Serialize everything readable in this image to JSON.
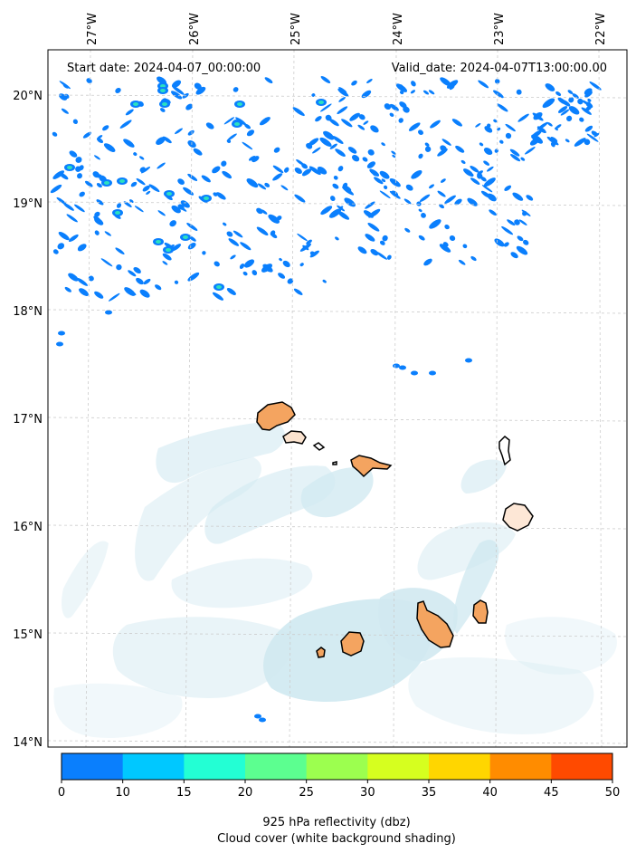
{
  "header": {
    "start_date": "Start date: 2024-04-07_00:00:00",
    "valid_date": "Valid_date: 2024-04-07T13:00:00.00"
  },
  "lon_labels": [
    "27°W",
    "26°W",
    "25°W",
    "24°W",
    "23°W",
    "22°W"
  ],
  "lat_labels": [
    "20°N",
    "19°N",
    "18°N",
    "17°N",
    "16°N",
    "15°N",
    "14°N"
  ],
  "colorbar": {
    "ticks": [
      "0",
      "10",
      "15",
      "20",
      "25",
      "30",
      "35",
      "40",
      "45",
      "50"
    ],
    "colors": [
      "#0a7ffd",
      "#00c8ff",
      "#23ffd4",
      "#5cff90",
      "#9cff4f",
      "#d6ff1f",
      "#ffd600",
      "#ff8c00",
      "#ff4a00"
    ],
    "label_line1": "925 hPa reflectivity (dbz)",
    "label_line2": "Cloud cover (white background shading)"
  },
  "colors": {
    "land": "#f4a460",
    "cloud": "#add8e6",
    "echo": "#0a7ffd",
    "echo_core": "#2be0c0"
  }
}
